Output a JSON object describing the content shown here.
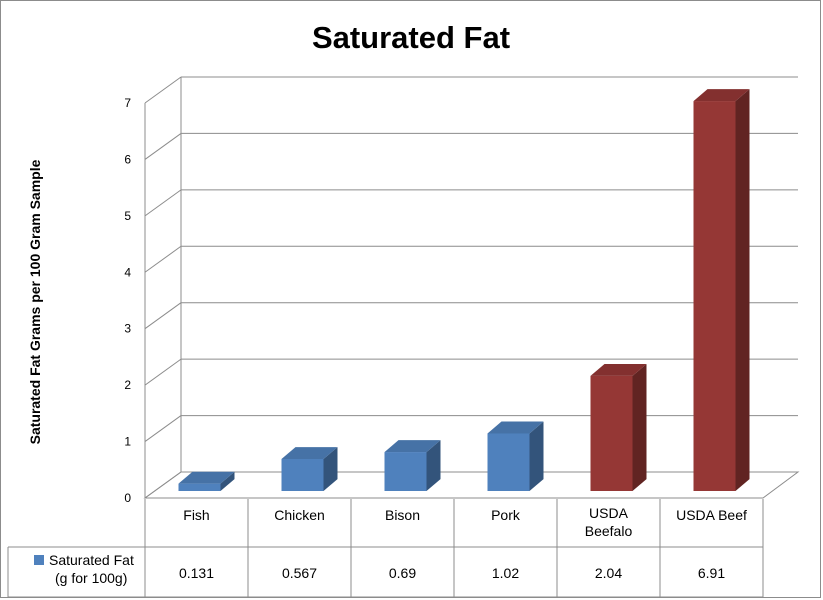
{
  "chart_data": {
    "type": "bar",
    "title": "Saturated Fat",
    "xlabel": "",
    "ylabel": "Saturated Fat Grams per 100 Gram Sample",
    "ylim": [
      0,
      7
    ],
    "yticks": [
      "0",
      "1",
      "2",
      "3",
      "4",
      "5",
      "6",
      "7"
    ],
    "categories": [
      {
        "lines": [
          "Fish"
        ]
      },
      {
        "lines": [
          "Chicken"
        ]
      },
      {
        "lines": [
          "Bison"
        ]
      },
      {
        "lines": [
          "Pork"
        ]
      },
      {
        "lines": [
          "USDA",
          "Beefalo"
        ]
      },
      {
        "lines": [
          "USDA Beef"
        ]
      }
    ],
    "series": [
      {
        "name": "Saturated Fat (g for 100g)",
        "name_lines": [
          "Saturated Fat",
          "(g for 100g)"
        ],
        "values": [
          0.131,
          0.567,
          0.69,
          1.02,
          2.04,
          6.91
        ],
        "value_labels": [
          "0.131",
          "0.567",
          "0.69",
          "1.02",
          "2.04",
          "6.91"
        ]
      }
    ],
    "bar_colors": [
      "#4f81bd",
      "#4f81bd",
      "#4f81bd",
      "#4f81bd",
      "#953735",
      "#953735"
    ],
    "grid": true,
    "data_table": true,
    "legend": "data-table"
  }
}
